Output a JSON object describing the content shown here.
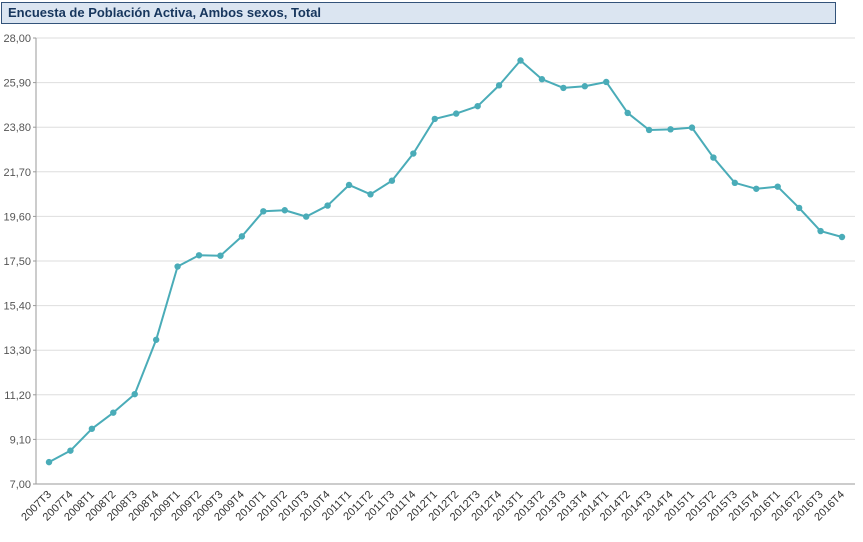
{
  "header": {
    "title": "Encuesta de Población Activa, Ambos sexos, Total"
  },
  "colors": {
    "line": "#4aacb8",
    "title_bar_bg": "#dbe5f1",
    "title_text": "#17365d",
    "gridline": "#dedede",
    "axis": "#9a9a9a"
  },
  "chart_data": {
    "type": "line",
    "title": "Encuesta de Población Activa, Ambos sexos, Total",
    "xlabel": "",
    "ylabel": "",
    "grid": true,
    "legend": null,
    "line_color": "#4aacb8",
    "marker": "circle",
    "ylim": [
      7.0,
      28.0
    ],
    "ytick_values": [
      7.0,
      9.1,
      11.2,
      13.3,
      15.4,
      17.5,
      19.6,
      21.7,
      23.8,
      25.9,
      28.0
    ],
    "ytick_labels": [
      "7,00",
      "9,10",
      "11,20",
      "13,30",
      "15,40",
      "17,50",
      "19,60",
      "21,70",
      "23,80",
      "25,90",
      "28,00"
    ],
    "categories": [
      "2007T3",
      "2007T4",
      "2008T1",
      "2008T2",
      "2008T3",
      "2008T4",
      "2009T1",
      "2009T2",
      "2009T3",
      "2009T4",
      "2010T1",
      "2010T2",
      "2010T3",
      "2010T4",
      "2011T1",
      "2011T2",
      "2011T3",
      "2011T4",
      "2012T1",
      "2012T2",
      "2012T3",
      "2012T4",
      "2013T1",
      "2013T2",
      "2013T3",
      "2013T4",
      "2014T1",
      "2014T2",
      "2014T3",
      "2014T4",
      "2015T1",
      "2015T2",
      "2015T3",
      "2015T4",
      "2016T1",
      "2016T2",
      "2016T3",
      "2016T4"
    ],
    "values": [
      8.03,
      8.57,
      9.6,
      10.36,
      11.23,
      13.79,
      17.24,
      17.77,
      17.75,
      18.66,
      19.84,
      19.89,
      19.59,
      20.11,
      21.08,
      20.64,
      21.28,
      22.56,
      24.19,
      24.44,
      24.79,
      25.77,
      26.94,
      26.06,
      25.65,
      25.73,
      25.93,
      24.47,
      23.67,
      23.7,
      23.78,
      22.37,
      21.18,
      20.9,
      21.0,
      20.0,
      18.91,
      18.63
    ]
  }
}
